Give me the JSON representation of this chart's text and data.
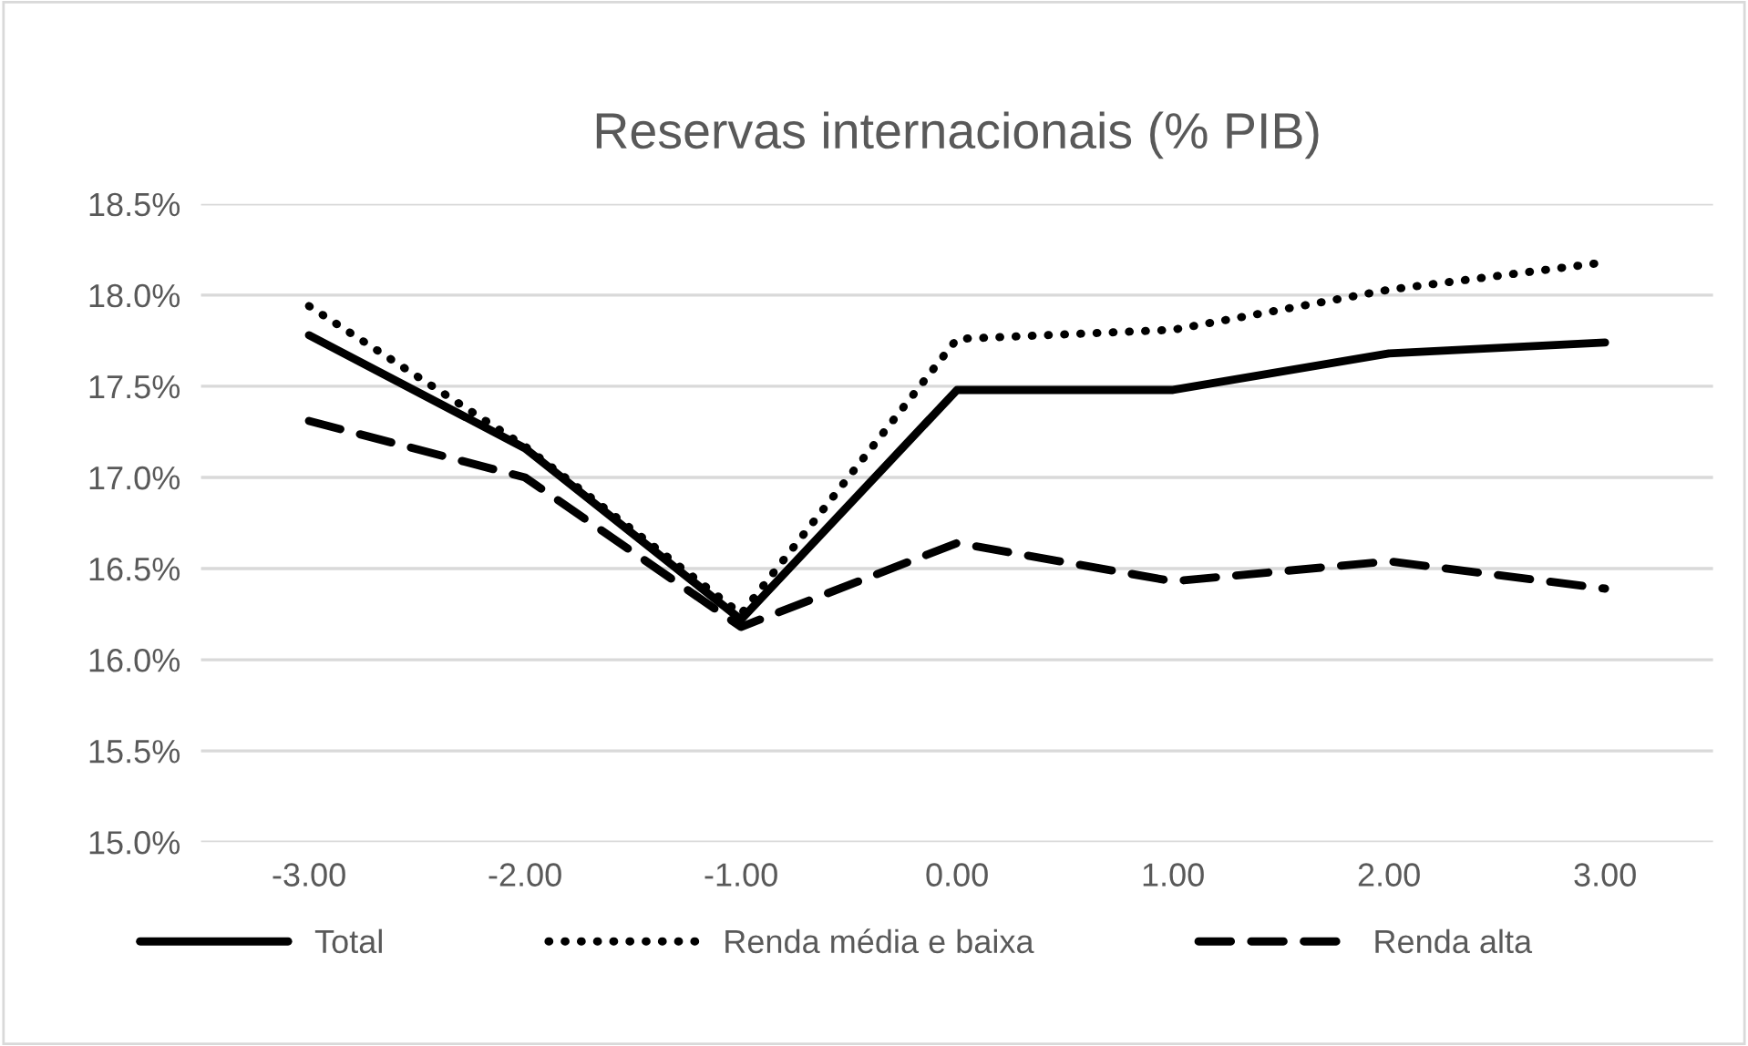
{
  "chart_data": {
    "type": "line",
    "title": "Reservas internacionais (% PIB)",
    "categories": [
      "-3.00",
      "-2.00",
      "-1.00",
      "0.00",
      "1.00",
      "2.00",
      "3.00"
    ],
    "series": [
      {
        "name": "Total",
        "color": "#000000",
        "line_style": "solid",
        "values": [
          17.78,
          17.16,
          16.22,
          17.48,
          17.48,
          17.68,
          17.74
        ]
      },
      {
        "name": "Renda média e baixa",
        "color": "#000000",
        "line_style": "dotted",
        "values": [
          17.94,
          17.17,
          16.25,
          17.76,
          17.81,
          18.03,
          18.18
        ]
      },
      {
        "name": "Renda alta",
        "color": "#000000",
        "line_style": "dashed",
        "values": [
          17.31,
          17.0,
          16.18,
          16.64,
          16.43,
          16.54,
          16.39
        ]
      }
    ],
    "ylim": [
      15.0,
      18.5
    ],
    "yticks": [
      {
        "value": 15.0,
        "label": "15.0%"
      },
      {
        "value": 15.5,
        "label": "15.5%"
      },
      {
        "value": 16.0,
        "label": "16.0%"
      },
      {
        "value": 16.5,
        "label": "16.5%"
      },
      {
        "value": 17.0,
        "label": "17.0%"
      },
      {
        "value": 17.5,
        "label": "17.5%"
      },
      {
        "value": 18.0,
        "label": "18.0%"
      },
      {
        "value": 18.5,
        "label": "18.5%"
      }
    ],
    "grid": "y",
    "legend": "bottom",
    "marker": "none"
  }
}
